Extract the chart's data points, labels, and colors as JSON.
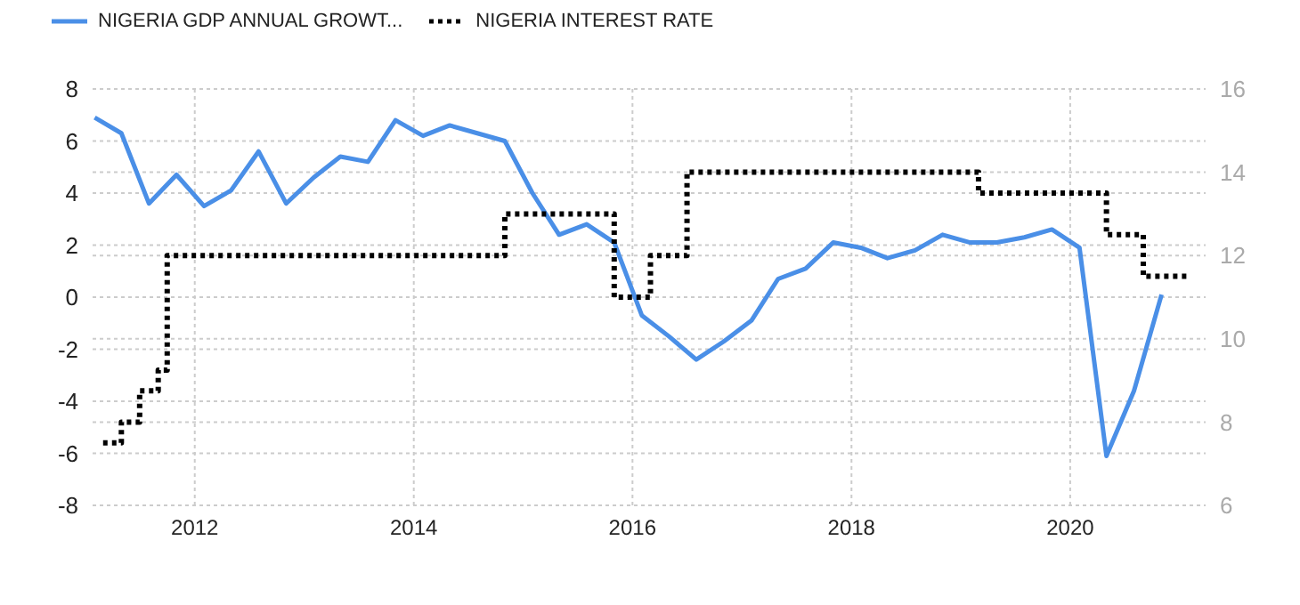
{
  "chart_data": {
    "type": "line",
    "series": [
      {
        "name": "NIGERIA GDP ANNUAL GROWT...",
        "type": "line",
        "color": "#4a8fe7",
        "line_style": "solid",
        "axis": "y",
        "x": [
          "2011-02",
          "2011-05",
          "2011-08",
          "2011-11",
          "2012-02",
          "2012-05",
          "2012-08",
          "2012-11",
          "2013-02",
          "2013-05",
          "2013-08",
          "2013-11",
          "2014-02",
          "2014-05",
          "2014-08",
          "2014-11",
          "2015-02",
          "2015-05",
          "2015-08",
          "2015-11",
          "2016-02",
          "2016-05",
          "2016-08",
          "2016-11",
          "2017-02",
          "2017-05",
          "2017-08",
          "2017-11",
          "2018-02",
          "2018-05",
          "2018-08",
          "2018-11",
          "2019-02",
          "2019-05",
          "2019-08",
          "2019-11",
          "2020-02",
          "2020-05",
          "2020-08",
          "2020-11"
        ],
        "values": [
          6.9,
          6.3,
          3.6,
          4.7,
          3.5,
          4.1,
          5.6,
          3.6,
          4.6,
          5.4,
          5.2,
          6.8,
          6.2,
          6.6,
          6.3,
          6.0,
          4.0,
          2.4,
          2.8,
          2.1,
          -0.7,
          -1.5,
          -2.4,
          -1.7,
          -0.9,
          0.7,
          1.1,
          2.1,
          1.9,
          1.5,
          1.8,
          2.4,
          2.1,
          2.1,
          2.3,
          2.6,
          1.9,
          -6.1,
          -3.6,
          0.1
        ]
      },
      {
        "name": "NIGERIA INTEREST RATE",
        "type": "step",
        "color": "#000000",
        "line_style": "dotted",
        "axis": "y2",
        "x": [
          "2011-03",
          "2011-05",
          "2011-07",
          "2011-09",
          "2011-10",
          "2014-11",
          "2015-11",
          "2016-03",
          "2016-07",
          "2019-03",
          "2020-05",
          "2020-09",
          "2021-02"
        ],
        "values": [
          7.5,
          8,
          8.75,
          9.25,
          12,
          13,
          11,
          12,
          14,
          13.5,
          12.5,
          11.5,
          11.5
        ]
      }
    ],
    "xlim": [
      "2011-01-25",
      "2021-03-28"
    ],
    "xticks": [
      "2012",
      "2014",
      "2016",
      "2018",
      "2020"
    ],
    "ylim": [
      -8,
      8
    ],
    "yticks": [
      -8,
      -6,
      -4,
      -2,
      0,
      2,
      4,
      6,
      8
    ],
    "y2lim": [
      6,
      16
    ],
    "y2ticks": [
      6,
      8,
      10,
      12,
      14,
      16
    ],
    "grid": true,
    "legend": "top left",
    "marker": "none"
  }
}
